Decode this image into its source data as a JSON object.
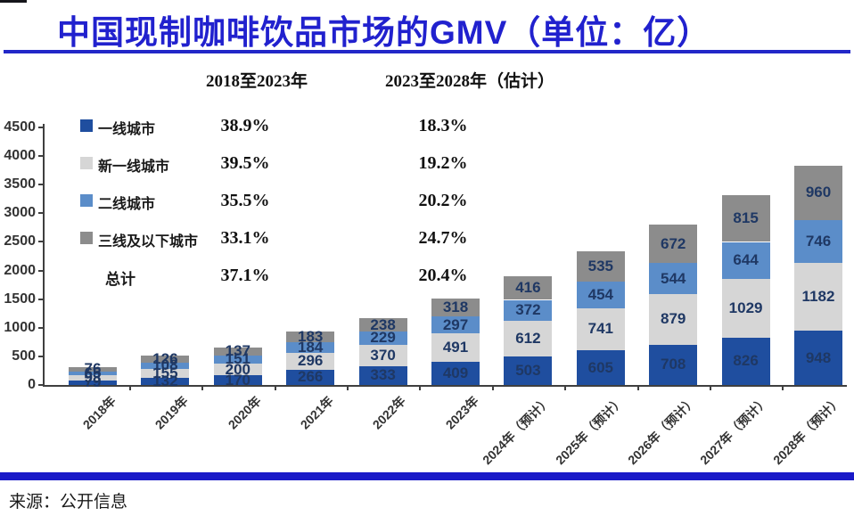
{
  "title": "中国现制咖啡饮品市场的GMV（单位：亿）",
  "footer": {
    "source": "来源：公开信息"
  },
  "colors": {
    "title_blue": "#2121CE",
    "rule_blue": "#2228C8",
    "bottom_band_blue": "#1A1AC8",
    "axis_gray": "#3F3F3F",
    "bar_label_navy": "#1F3864"
  },
  "chart_data": {
    "type": "bar",
    "stacked": true,
    "title": "中国现制咖啡饮品市场的GMV（单位：亿）",
    "unit": "亿",
    "ylim": [
      0,
      4500
    ],
    "ytick_step": 500,
    "grid": false,
    "legend_position": "upper-left",
    "categories": [
      "2018年",
      "2019年",
      "2020年",
      "2021年",
      "2022年",
      "2023年",
      "2024年（预计）",
      "2025年（预计）",
      "2026年（预计）",
      "2027年（预计）",
      "2028年（预计）"
    ],
    "series": [
      {
        "name": "一线城市",
        "color": "#1F4E9F",
        "values": [
          79,
          132,
          170,
          266,
          333,
          409,
          503,
          605,
          708,
          826,
          948
        ]
      },
      {
        "name": "新一线城市",
        "color": "#D6D6D6",
        "values": [
          93,
          155,
          200,
          296,
          370,
          491,
          612,
          741,
          879,
          1029,
          1182
        ]
      },
      {
        "name": "二线城市",
        "color": "#5B8DC9",
        "values": [
          65,
          108,
          151,
          184,
          229,
          297,
          372,
          454,
          544,
          644,
          746
        ]
      },
      {
        "name": "三线及以下城市",
        "color": "#8C8C8C",
        "values": [
          76,
          126,
          137,
          183,
          238,
          318,
          416,
          535,
          672,
          815,
          960
        ]
      }
    ],
    "cagr_table": {
      "col1_header": "2018至2023年",
      "col2_header": "2023至2028年（估计）",
      "rows": [
        {
          "label": "一线城市",
          "c1": "38.9%",
          "c2": "18.3%"
        },
        {
          "label": "新一线城市",
          "c1": "39.5%",
          "c2": "19.2%"
        },
        {
          "label": "二线城市",
          "c1": "35.5%",
          "c2": "20.2%"
        },
        {
          "label": "三线及以下城市",
          "c1": "33.1%",
          "c2": "24.7%"
        },
        {
          "label": "总计",
          "c1": "37.1%",
          "c2": "20.4%"
        }
      ]
    }
  }
}
